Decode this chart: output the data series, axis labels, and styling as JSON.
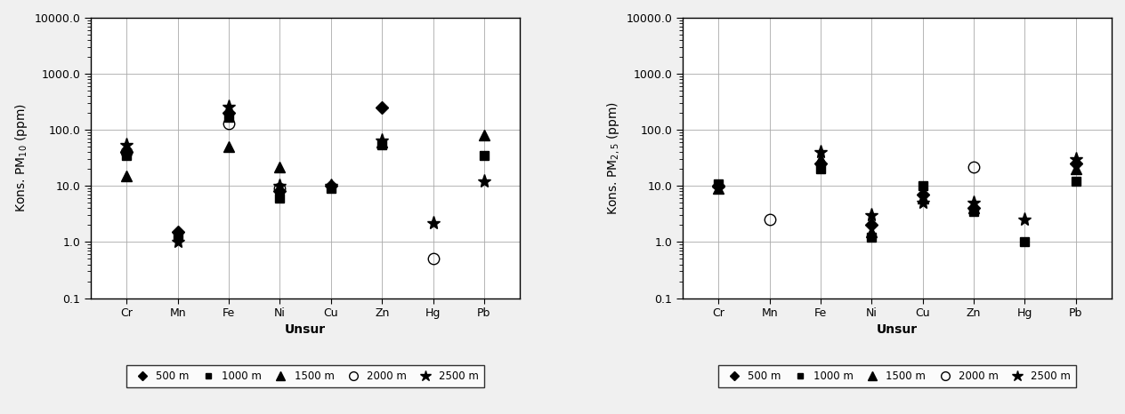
{
  "elements": [
    "Cr",
    "Mn",
    "Fe",
    "Ni",
    "Cu",
    "Zn",
    "Hg",
    "Pb"
  ],
  "pm10": {
    "500m": [
      40,
      1.5,
      200,
      8,
      10,
      250,
      null,
      null
    ],
    "1000m": [
      35,
      1.3,
      170,
      6,
      9,
      55,
      null,
      35
    ],
    "1500m": [
      15,
      null,
      50,
      22,
      null,
      60,
      null,
      80
    ],
    "2000m": [
      40,
      null,
      130,
      9,
      null,
      null,
      0.5,
      null
    ],
    "2500m": [
      55,
      1.0,
      260,
      10,
      10,
      65,
      2.2,
      12
    ]
  },
  "pm25": {
    "500m": [
      10,
      null,
      25,
      2.0,
      7,
      4,
      null,
      25
    ],
    "1000m": [
      11,
      null,
      20,
      1.2,
      10,
      3.5,
      1.0,
      12
    ],
    "1500m": [
      9,
      null,
      30,
      1.5,
      6,
      4,
      null,
      20
    ],
    "2000m": [
      null,
      2.5,
      null,
      null,
      null,
      22,
      null,
      null
    ],
    "2500m": [
      9,
      null,
      40,
      3,
      5,
      5,
      2.5,
      30
    ]
  },
  "series_labels": [
    "500 m",
    "1000 m",
    "1500 m",
    "2000 m",
    "2500 m"
  ],
  "series_keys": [
    "500m",
    "1000m",
    "1500m",
    "2000m",
    "2500m"
  ],
  "markers": [
    "D",
    "s",
    "^",
    "o",
    "*"
  ],
  "marker_sizes": [
    7,
    7,
    9,
    9,
    11
  ],
  "filled": [
    true,
    true,
    true,
    false,
    true
  ],
  "ylabel_left": "Kons. PM$_{10}$ (ppm)",
  "ylabel_right": "Kons. PM$_{2,5}$ (ppm)",
  "xlabel": "Unsur",
  "ylim": [
    0.1,
    10000.0
  ],
  "yticks": [
    0.1,
    1.0,
    10.0,
    100.0,
    1000.0,
    10000.0
  ],
  "ytick_labels": [
    "0.1",
    "1.0",
    "10.0",
    "100.0",
    "1000.0",
    "10000.0"
  ],
  "color": "#000000",
  "bg_color": "#f0f0f0",
  "plot_bg": "#ffffff",
  "legend_fontsize": 8.5,
  "label_fontsize": 10,
  "tick_fontsize": 9,
  "figsize": [
    12.64,
    4.66
  ],
  "dpi": 100
}
